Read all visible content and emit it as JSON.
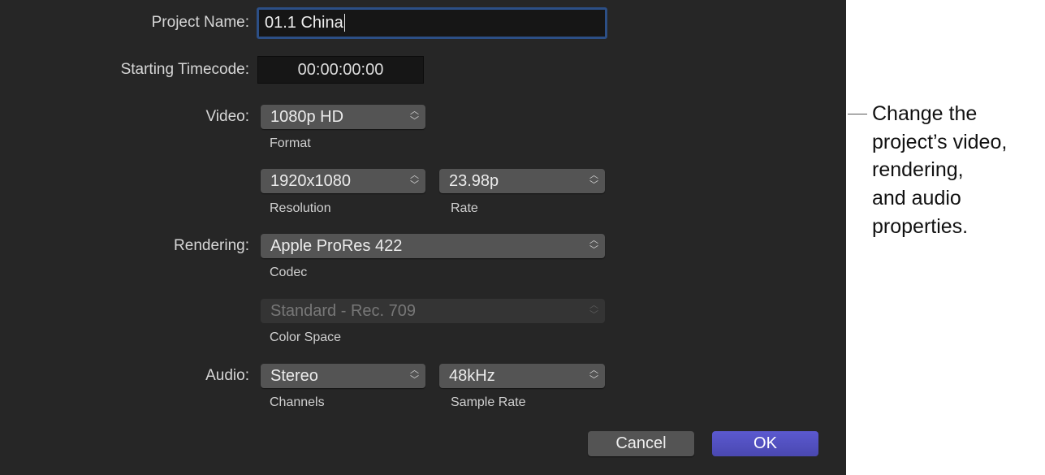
{
  "form": {
    "project_name_label": "Project Name:",
    "project_name_value": "01.1 China",
    "timecode_label": "Starting Timecode:",
    "timecode_value": "00:00:00:00",
    "video_label": "Video:",
    "format_value": "1080p HD",
    "format_caption": "Format",
    "resolution_value": "1920x1080",
    "resolution_caption": "Resolution",
    "rate_value": "23.98p",
    "rate_caption": "Rate",
    "rendering_label": "Rendering:",
    "codec_value": "Apple ProRes 422",
    "codec_caption": "Codec",
    "color_space_value": "Standard - Rec. 709",
    "color_space_caption": "Color Space",
    "audio_label": "Audio:",
    "channels_value": "Stereo",
    "channels_caption": "Channels",
    "sample_rate_value": "48kHz",
    "sample_rate_caption": "Sample Rate"
  },
  "buttons": {
    "cancel": "Cancel",
    "ok": "OK"
  },
  "callout": {
    "lines": [
      "Change the",
      "project’s video,",
      "rendering,",
      "and audio",
      "properties."
    ]
  },
  "colors": {
    "dialog_bg": "#262626",
    "ok_button": "#5553c4",
    "focus_ring": "#2c4f86"
  }
}
